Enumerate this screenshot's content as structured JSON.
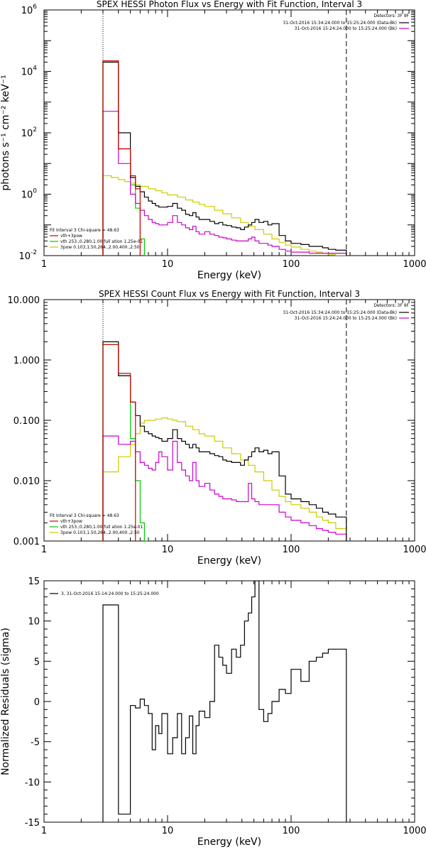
{
  "chart_data": [
    {
      "type": "line",
      "title": "SPEX HESSI Photon Flux vs Energy with Fit Function, Interval 3",
      "xlabel": "Energy (keV)",
      "ylabel": "photons s⁻¹ cm⁻² keV⁻¹",
      "x_scale": "log",
      "y_scale": "log",
      "xlim": [
        1,
        1000
      ],
      "ylim": [
        0.01,
        1000000
      ],
      "x_ticks": [
        {
          "v": 1,
          "label": "1"
        },
        {
          "v": 10,
          "label": "10"
        },
        {
          "v": 100,
          "label": "100"
        },
        {
          "v": 1000,
          "label": "1000"
        }
      ],
      "y_ticks": [
        {
          "v": 0.01,
          "base": "10",
          "exp": "-2"
        },
        {
          "v": 1,
          "base": "10",
          "exp": "0"
        },
        {
          "v": 100,
          "base": "10",
          "exp": "2"
        },
        {
          "v": 10000,
          "base": "10",
          "exp": "4"
        },
        {
          "v": 1000000,
          "base": "10",
          "exp": "6"
        }
      ],
      "vlines": [
        {
          "x": 3,
          "style": "dotted",
          "color": "#000000"
        },
        {
          "x": 280,
          "style": "dashed",
          "color": "#000000"
        }
      ],
      "legend_top_right": {
        "header": "Detectors: 3F 9F",
        "entries": [
          {
            "text": "31-Oct-2016 15:34:24.000 to 15:25:24.000 (Data-Bk)",
            "color": "#000000"
          },
          {
            "text": "31-Oct-2016 15:24:24.000 to 15:25:24.000 (Bk)",
            "color": "#cc00cc"
          }
        ]
      },
      "legend_bottom_left": {
        "header": "Fit Interval 3   Chi-square = 48.63",
        "entries": [
          {
            "text": "vth+3pow",
            "color": "#cc0000"
          },
          {
            "text": "vth 253.,0.280,1.00  full ation 1.25e-01",
            "color": "#00cc00"
          },
          {
            "text": "3pow 0.103,1.50,264.,2.00,400.,2.50",
            "color": "#cccc00"
          }
        ]
      },
      "series": [
        {
          "name": "31-Oct-2016 15:34:24.000 to 15:25:24.000 (Data-Bk)",
          "color": "#000000",
          "x": [
            3,
            3.5,
            4,
            4.5,
            5,
            5.5,
            6,
            6.5,
            7,
            7.5,
            8,
            8.5,
            9,
            10,
            11,
            12,
            13,
            14,
            15,
            16,
            17,
            18,
            20,
            22,
            24,
            26,
            28,
            30,
            33,
            36,
            39,
            42,
            45,
            48,
            51,
            55,
            60,
            65,
            70,
            80,
            90,
            100,
            120,
            140,
            160,
            180,
            200,
            230,
            280
          ],
          "y": [
            20000,
            20000,
            100,
            100,
            3.5,
            1.8,
            1.2,
            0.8,
            0.6,
            0.5,
            0.42,
            0.38,
            0.38,
            0.4,
            0.5,
            0.35,
            0.3,
            0.22,
            0.2,
            0.25,
            0.18,
            0.15,
            0.15,
            0.13,
            0.11,
            0.12,
            0.1,
            0.095,
            0.085,
            0.08,
            0.07,
            0.085,
            0.1,
            0.12,
            0.15,
            0.12,
            0.13,
            0.1,
            0.11,
            0.045,
            0.03,
            0.025,
            0.023,
            0.02,
            0.02,
            0.018,
            0.016,
            0.015,
            0.015
          ]
        },
        {
          "name": "31-Oct-2016 15:24:24.000 to 15:25:24.000 (Bk)",
          "color": "#cc00cc",
          "x": [
            3,
            3.5,
            4,
            4.5,
            5,
            5.5,
            6,
            6.5,
            7,
            7.5,
            8,
            8.5,
            9,
            10,
            11,
            12,
            13,
            14,
            15,
            16,
            17,
            18,
            20,
            22,
            24,
            26,
            28,
            30,
            33,
            36,
            39,
            42,
            45,
            48,
            51,
            55,
            60,
            65,
            70,
            80,
            90,
            100,
            120,
            140,
            160,
            180,
            200,
            230,
            280
          ],
          "y": [
            500,
            500,
            10,
            10,
            1.0,
            0.5,
            0.3,
            0.2,
            0.15,
            0.12,
            0.11,
            0.1,
            0.1,
            0.12,
            0.2,
            0.12,
            0.1,
            0.08,
            0.07,
            0.09,
            0.06,
            0.05,
            0.06,
            0.05,
            0.045,
            0.04,
            0.038,
            0.035,
            0.032,
            0.03,
            0.03,
            0.03,
            0.035,
            0.04,
            0.03,
            0.025,
            0.025,
            0.022,
            0.02,
            0.016,
            0.014,
            0.013,
            0.013,
            0.012,
            0.012,
            0.012,
            0.012,
            0.012,
            0.012
          ]
        },
        {
          "name": "vth+3pow",
          "color": "#cc0000",
          "x": [
            3,
            3.5,
            4,
            4.5,
            5,
            5.5,
            6
          ],
          "y": [
            22000,
            22000,
            30,
            30,
            4.0,
            1.5,
            1.2
          ]
        },
        {
          "name": "vth",
          "color": "#00cc00",
          "x": [
            3,
            3.5,
            4,
            4.5,
            5,
            5.5,
            6,
            6.5,
            7
          ],
          "y": [
            22000,
            22000,
            30,
            30,
            2.0,
            0.35,
            0.035,
            0.01,
            0.01
          ]
        },
        {
          "name": "3pow",
          "color": "#cccc00",
          "x": [
            3,
            3.5,
            4,
            4.5,
            5,
            5.5,
            6,
            7,
            8,
            9,
            10,
            12,
            14,
            16,
            18,
            20,
            24,
            28,
            33,
            39,
            45,
            51,
            60,
            70,
            80,
            90,
            100,
            120,
            140,
            160,
            180,
            200,
            230,
            280
          ],
          "y": [
            4,
            3.5,
            3.0,
            2.6,
            2.3,
            2.0,
            1.8,
            1.5,
            1.3,
            1.1,
            0.95,
            0.8,
            0.65,
            0.55,
            0.47,
            0.4,
            0.3,
            0.23,
            0.17,
            0.12,
            0.09,
            0.07,
            0.05,
            0.035,
            0.027,
            0.022,
            0.019,
            0.016,
            0.014,
            0.013,
            0.012,
            0.011,
            0.01,
            0.01
          ]
        }
      ]
    },
    {
      "type": "line",
      "title": "SPEX HESSI Count Flux vs Energy with Fit Function, Interval 3",
      "xlabel": "Energy (keV)",
      "ylabel": "",
      "x_scale": "log",
      "y_scale": "log",
      "xlim": [
        1,
        1000
      ],
      "ylim": [
        0.001,
        10
      ],
      "x_ticks": [
        {
          "v": 1,
          "label": "1"
        },
        {
          "v": 10,
          "label": "10"
        },
        {
          "v": 100,
          "label": "100"
        },
        {
          "v": 1000,
          "label": "1000"
        }
      ],
      "y_ticks": [
        {
          "v": 0.001,
          "label": "0.001"
        },
        {
          "v": 0.01,
          "label": "0.010"
        },
        {
          "v": 0.1,
          "label": "0.100"
        },
        {
          "v": 1,
          "label": "1.000"
        },
        {
          "v": 10,
          "label": "10.000"
        }
      ],
      "vlines": [
        {
          "x": 3,
          "style": "dotted",
          "color": "#000000"
        },
        {
          "x": 280,
          "style": "dashed",
          "color": "#000000"
        }
      ],
      "legend_top_right": {
        "header": "Detectors: 3F 9F",
        "entries": [
          {
            "text": "31-Oct-2016 15:34:24.000 to 15:25:24.000 (Data-Bk)",
            "color": "#000000"
          },
          {
            "text": "31-Oct-2016 15:24:24.000 to 15:25:24.000 (Bk)",
            "color": "#cc00cc"
          }
        ]
      },
      "legend_bottom_left": {
        "header": "Fit Interval 3   Chi-square = 48.63",
        "entries": [
          {
            "text": "vth+3pow",
            "color": "#cc0000"
          },
          {
            "text": "vth 253.,0.280,1.00  full ation 1.25e-01",
            "color": "#00cc00"
          },
          {
            "text": "3pow 0.103,1.50,264.,2.00,400.,2.50",
            "color": "#cccc00"
          }
        ]
      },
      "series": [
        {
          "name": "31-Oct-2016 15:34:24.000 to 15:25:24.000 (Data-Bk)",
          "color": "#000000",
          "x": [
            3,
            3.5,
            4,
            4.5,
            5,
            5.5,
            6,
            6.5,
            7,
            7.5,
            8,
            8.5,
            9,
            10,
            11,
            12,
            13,
            14,
            15,
            16,
            17,
            18,
            20,
            22,
            24,
            26,
            28,
            30,
            33,
            36,
            39,
            42,
            45,
            48,
            51,
            55,
            60,
            65,
            70,
            80,
            90,
            100,
            120,
            140,
            160,
            180,
            200,
            230,
            280
          ],
          "y": [
            2.0,
            2.0,
            0.55,
            0.55,
            0.2,
            0.12,
            0.08,
            0.065,
            0.06,
            0.055,
            0.052,
            0.05,
            0.045,
            0.05,
            0.07,
            0.05,
            0.045,
            0.04,
            0.035,
            0.04,
            0.035,
            0.03,
            0.03,
            0.028,
            0.026,
            0.025,
            0.022,
            0.021,
            0.02,
            0.02,
            0.018,
            0.022,
            0.025,
            0.03,
            0.035,
            0.03,
            0.032,
            0.028,
            0.03,
            0.012,
            0.006,
            0.005,
            0.0045,
            0.004,
            0.0035,
            0.003,
            0.0028,
            0.0025,
            0.002
          ]
        },
        {
          "name": "31-Oct-2016 15:24:24.000 to 15:25:24.000 (Bk)",
          "color": "#cc00cc",
          "x": [
            3,
            3.5,
            4,
            4.5,
            5,
            5.5,
            6,
            6.5,
            7,
            7.5,
            8,
            8.5,
            9,
            10,
            11,
            12,
            13,
            14,
            15,
            16,
            17,
            18,
            20,
            22,
            24,
            26,
            28,
            30,
            33,
            36,
            39,
            42,
            45,
            48,
            51,
            55,
            60,
            65,
            70,
            80,
            90,
            100,
            120,
            140,
            160,
            180,
            200,
            230,
            280
          ],
          "y": [
            0.055,
            0.055,
            0.04,
            0.04,
            0.045,
            0.03,
            0.02,
            0.018,
            0.016,
            0.015,
            0.02,
            0.03,
            0.025,
            0.015,
            0.045,
            0.02,
            0.015,
            0.012,
            0.01,
            0.02,
            0.01,
            0.008,
            0.009,
            0.007,
            0.006,
            0.0055,
            0.005,
            0.005,
            0.0048,
            0.0045,
            0.0045,
            0.0045,
            0.009,
            0.005,
            0.0045,
            0.004,
            0.004,
            0.004,
            0.004,
            0.003,
            0.0025,
            0.0022,
            0.002,
            0.0018,
            0.0016,
            0.0015,
            0.0014,
            0.0013,
            0.0012
          ]
        },
        {
          "name": "vth+3pow",
          "color": "#cc0000",
          "x": [
            3,
            3.5,
            4,
            4.5,
            5,
            5.5
          ],
          "y": [
            1.8,
            1.8,
            0.6,
            0.6,
            0.2,
            0.11
          ]
        },
        {
          "name": "vth",
          "color": "#00cc00",
          "x": [
            3,
            3.5,
            4,
            4.5,
            5,
            5.5,
            6,
            6.5,
            7
          ],
          "y": [
            1.8,
            1.8,
            0.55,
            0.55,
            0.05,
            0.01,
            0.002,
            0.001,
            0.001
          ]
        },
        {
          "name": "3pow",
          "color": "#cccc00",
          "x": [
            3,
            3.5,
            4,
            4.5,
            5,
            5.5,
            6,
            6.5,
            7,
            8,
            9,
            10,
            11,
            12,
            14,
            16,
            18,
            20,
            24,
            28,
            33,
            39,
            45,
            51,
            60,
            70,
            80,
            90,
            100,
            120,
            140,
            160,
            180,
            200,
            230,
            280
          ],
          "y": [
            0.014,
            0.014,
            0.025,
            0.025,
            0.04,
            0.06,
            0.09,
            0.1,
            0.1,
            0.105,
            0.11,
            0.105,
            0.1,
            0.095,
            0.08,
            0.07,
            0.06,
            0.055,
            0.045,
            0.035,
            0.028,
            0.022,
            0.018,
            0.014,
            0.01,
            0.007,
            0.0055,
            0.0045,
            0.004,
            0.0035,
            0.003,
            0.0025,
            0.0022,
            0.002,
            0.0016,
            0.0012
          ]
        }
      ]
    },
    {
      "type": "line",
      "title": "",
      "xlabel": "Energy (keV)",
      "ylabel": "Normalized Residuals (sigma)",
      "x_scale": "log",
      "y_scale": "linear",
      "xlim": [
        1,
        1000
      ],
      "ylim": [
        -15,
        15
      ],
      "x_ticks": [
        {
          "v": 1,
          "label": "1"
        },
        {
          "v": 10,
          "label": "10"
        },
        {
          "v": 100,
          "label": "100"
        },
        {
          "v": 1000,
          "label": "1000"
        }
      ],
      "y_ticks": [
        {
          "v": -15,
          "label": "-15"
        },
        {
          "v": -10,
          "label": "-10"
        },
        {
          "v": -5,
          "label": "-5"
        },
        {
          "v": 0,
          "label": "0"
        },
        {
          "v": 5,
          "label": "5"
        },
        {
          "v": 10,
          "label": "10"
        },
        {
          "v": 15,
          "label": "15"
        }
      ],
      "vlines": [],
      "legend_top_left": {
        "entries": [
          {
            "text": "3, 31-Oct-2016 15:14:24.000 to 15:25:24.000",
            "color": "#000000"
          }
        ]
      },
      "series": [
        {
          "name": "3, 31-Oct-2016 15:14:24.000 to 15:25:24.000",
          "color": "#000000",
          "x": [
            3,
            4,
            4.3,
            4.6,
            5,
            5.5,
            6,
            6.5,
            7,
            7.5,
            8,
            8.5,
            9,
            10,
            11,
            12,
            13,
            14,
            15,
            16,
            17,
            18,
            20,
            22,
            24,
            26,
            28,
            30,
            33,
            36,
            39,
            42,
            45,
            48,
            51,
            55,
            60,
            65,
            70,
            80,
            90,
            100,
            120,
            140,
            160,
            180,
            200,
            230,
            280
          ],
          "y": [
            12,
            -14,
            -14,
            -14,
            -0.5,
            -0.8,
            0.3,
            -0.5,
            -1.5,
            -6,
            -3,
            -4,
            -1.5,
            -6.5,
            -4.5,
            -1.5,
            -6.5,
            -4.5,
            -1.8,
            -6.5,
            -3,
            -1.2,
            -2,
            0,
            7,
            5.5,
            4.5,
            3.5,
            6.5,
            5.5,
            7,
            10,
            11,
            13,
            15,
            -1,
            -2.5,
            -1.5,
            0,
            1.5,
            1,
            4,
            2.5,
            5,
            5.5,
            6,
            6.5,
            6.5,
            6.5
          ]
        }
      ]
    }
  ]
}
